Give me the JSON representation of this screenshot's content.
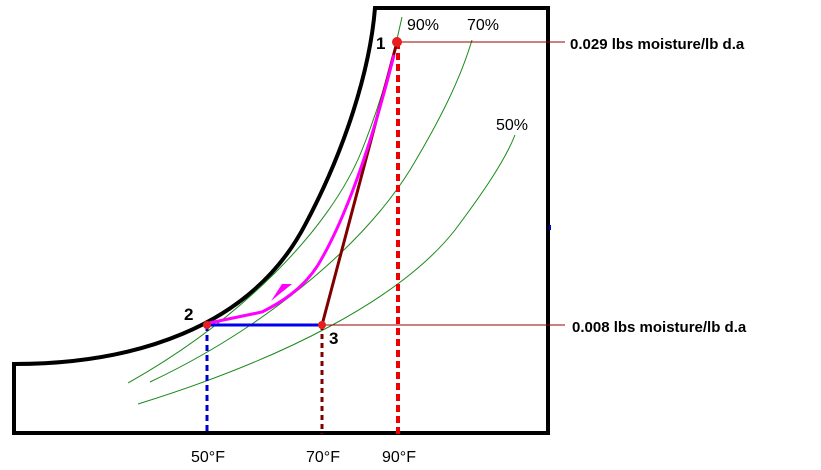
{
  "chart_data": {
    "type": "diagram",
    "title": "",
    "relative_humidity_curves": [
      "90%",
      "70%",
      "50%"
    ],
    "points": [
      {
        "label": "1",
        "dry_bulb_F": 90,
        "humidity_ratio": 0.029
      },
      {
        "label": "2",
        "dry_bulb_F": 50,
        "humidity_ratio": 0.008
      },
      {
        "label": "3",
        "dry_bulb_F": 70,
        "humidity_ratio": 0.008
      }
    ],
    "humidity_labels": [
      {
        "text": "0.029 lbs moisture/lb d.a",
        "value": 0.029
      },
      {
        "text": "0.008 lbs moisture/lb d.a",
        "value": 0.008
      }
    ],
    "temperature_labels": [
      {
        "text": "50°F",
        "value": 50
      },
      {
        "text": "70°F",
        "value": 70
      },
      {
        "text": "90°F",
        "value": 90
      }
    ]
  },
  "colors": {
    "outline": "#000000",
    "rh_curves": "#1a8a1a",
    "point": "#e81e1e",
    "process_1_2": "#ff00ff",
    "process_1_3": "#800000",
    "process_2_3": "#0000ee",
    "drop_50": "#0000cc",
    "drop_70": "#800000",
    "drop_90": "#ee0000",
    "guide": "#990000"
  }
}
